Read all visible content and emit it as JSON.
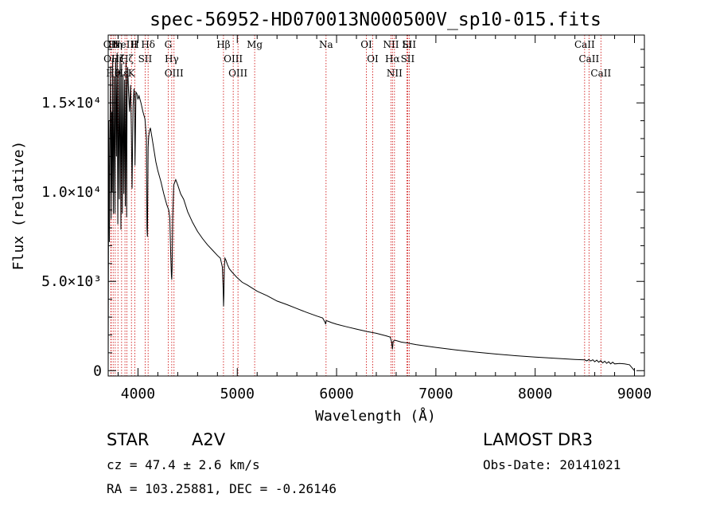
{
  "chart_data": {
    "type": "line",
    "title": "spec-56952-HD070013N000500V_sp10-015.fits",
    "xlabel": "Wavelength (Å)",
    "ylabel": "Flux (relative)",
    "xlim": [
      3700,
      9100
    ],
    "ylim": [
      -300,
      18800
    ],
    "x_ticks": [
      {
        "value": 4000,
        "label": "4000"
      },
      {
        "value": 5000,
        "label": "5000"
      },
      {
        "value": 6000,
        "label": "6000"
      },
      {
        "value": 7000,
        "label": "7000"
      },
      {
        "value": 8000,
        "label": "8000"
      },
      {
        "value": 9000,
        "label": "9000"
      }
    ],
    "y_ticks": [
      {
        "value": 0,
        "label": "0"
      },
      {
        "value": 5000,
        "label": "5.0×10³"
      },
      {
        "value": 10000,
        "label": "1.0×10⁴"
      },
      {
        "value": 15000,
        "label": "1.5×10⁴"
      }
    ],
    "series": [
      {
        "name": "flux",
        "x": [
          3700,
          3706,
          3712,
          3718,
          3724,
          3730,
          3736,
          3740,
          3745,
          3752,
          3760,
          3768,
          3775,
          3783,
          3790,
          3797,
          3805,
          3812,
          3820,
          3828,
          3835,
          3843,
          3850,
          3858,
          3865,
          3872,
          3880,
          3886,
          3890,
          3896,
          3905,
          3915,
          3925,
          3933,
          3940,
          3950,
          3960,
          3965,
          3970,
          3980,
          3990,
          4000,
          4010,
          4030,
          4050,
          4070,
          4085,
          4090,
          4095,
          4102,
          4108,
          4115,
          4125,
          4140,
          4160,
          4180,
          4200,
          4230,
          4260,
          4290,
          4310,
          4320,
          4330,
          4337,
          4340,
          4343,
          4350,
          4360,
          4380,
          4400,
          4430,
          4460,
          4500,
          4550,
          4600,
          4650,
          4700,
          4750,
          4800,
          4830,
          4850,
          4858,
          4862,
          4865,
          4870,
          4876,
          4885,
          4900,
          4920,
          4950,
          5000,
          5050,
          5100,
          5200,
          5300,
          5400,
          5500,
          5600,
          5700,
          5800,
          5860,
          5885,
          5890,
          5895,
          5910,
          5950,
          6000,
          6100,
          6200,
          6300,
          6400,
          6500,
          6540,
          6555,
          6563,
          6570,
          6590,
          6650,
          6700,
          6800,
          6900,
          7000,
          7200,
          7400,
          7600,
          7800,
          8000,
          8200,
          8400,
          8500,
          8520,
          8540,
          8560,
          8580,
          8600,
          8620,
          8640,
          8660,
          8680,
          8700,
          8720,
          8740,
          8760,
          8780,
          8800,
          8850,
          8900,
          8950,
          9000
        ],
        "values": [
          0,
          14000,
          7200,
          13000,
          17000,
          8500,
          14500,
          10000,
          17500,
          8800,
          16500,
          8800,
          17500,
          12000,
          17800,
          8200,
          16800,
          9600,
          17600,
          7900,
          17200,
          8800,
          16600,
          9900,
          16300,
          9200,
          17300,
          8600,
          15000,
          17000,
          15600,
          14500,
          16000,
          13500,
          10200,
          14800,
          15800,
          15300,
          11500,
          15600,
          15500,
          15200,
          15400,
          15000,
          14500,
          14100,
          13000,
          8000,
          7500,
          12500,
          13100,
          13400,
          13600,
          13100,
          12400,
          11700,
          11200,
          10600,
          9900,
          9300,
          9000,
          8600,
          6500,
          5300,
          5100,
          5700,
          8600,
          10400,
          10700,
          10400,
          9900,
          9600,
          8900,
          8300,
          7800,
          7400,
          7050,
          6750,
          6450,
          6300,
          5800,
          4600,
          3600,
          4200,
          5800,
          6300,
          6200,
          5950,
          5700,
          5500,
          5200,
          4950,
          4800,
          4450,
          4200,
          3900,
          3700,
          3480,
          3260,
          3060,
          2950,
          2700,
          2600,
          2800,
          2780,
          2690,
          2600,
          2460,
          2330,
          2200,
          2090,
          1950,
          1880,
          1600,
          1200,
          1650,
          1700,
          1600,
          1560,
          1460,
          1380,
          1300,
          1160,
          1040,
          930,
          840,
          760,
          690,
          630,
          600,
          550,
          620,
          540,
          610,
          500,
          590,
          470,
          560,
          430,
          530,
          410,
          500,
          380,
          470,
          380,
          400,
          380,
          330,
          0
        ]
      }
    ],
    "spectral_lines": [
      {
        "wavelength": 3727,
        "label": "OII"
      },
      {
        "wavelength": 3730,
        "label": "OII"
      },
      {
        "wavelength": 3750,
        "label": "Hθ"
      },
      {
        "wavelength": 3771,
        "label": "Hη"
      },
      {
        "wavelength": 3798,
        "label": "Hζ"
      },
      {
        "wavelength": 3835,
        "label": "Hε"
      },
      {
        "wavelength": 3869,
        "label": "NeIII"
      },
      {
        "wavelength": 3889,
        "label": "Hζ"
      },
      {
        "wavelength": 3934,
        "label": "K"
      },
      {
        "wavelength": 3969,
        "label": "H"
      },
      {
        "wavelength": 4072,
        "label": "SII"
      },
      {
        "wavelength": 4102,
        "label": "Hδ"
      },
      {
        "wavelength": 4304,
        "label": "G"
      },
      {
        "wavelength": 4340,
        "label": "Hγ"
      },
      {
        "wavelength": 4363,
        "label": "OIII"
      },
      {
        "wavelength": 4861,
        "label": "Hβ"
      },
      {
        "wavelength": 4959,
        "label": "OIII"
      },
      {
        "wavelength": 5007,
        "label": "OIII"
      },
      {
        "wavelength": 5175,
        "label": "Mg"
      },
      {
        "wavelength": 5894,
        "label": "Na"
      },
      {
        "wavelength": 6300,
        "label": "OI"
      },
      {
        "wavelength": 6364,
        "label": "OI"
      },
      {
        "wavelength": 6548,
        "label": "NII"
      },
      {
        "wavelength": 6563,
        "label": "Hα"
      },
      {
        "wavelength": 6583,
        "label": "NII"
      },
      {
        "wavelength": 6708,
        "label": "Li"
      },
      {
        "wavelength": 6716,
        "label": "SII"
      },
      {
        "wavelength": 6731,
        "label": "SII"
      },
      {
        "wavelength": 8498,
        "label": "CaII"
      },
      {
        "wavelength": 8542,
        "label": "CaII"
      },
      {
        "wavelength": 8662,
        "label": "CaII"
      }
    ],
    "line_color": "#000000",
    "marker_color": "#cc0000"
  },
  "info": {
    "object_class": "STAR",
    "subclass": "A2V",
    "survey": "LAMOST DR3",
    "redshift_text": "cz = 47.4 ± 2.6 km/s",
    "obs_date_text": "Obs-Date: 20141021",
    "coords_text": "RA = 103.25881, DEC =  -0.26146"
  }
}
